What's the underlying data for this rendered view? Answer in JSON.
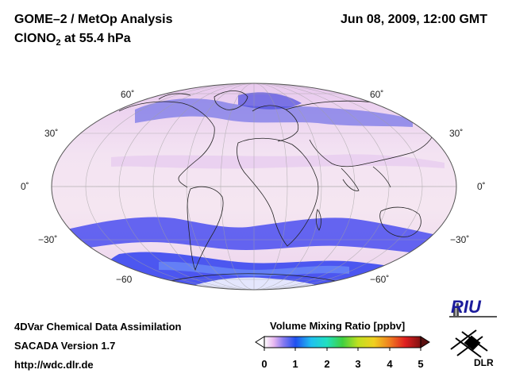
{
  "header": {
    "title_line1": "GOME–2 / MetOp Analysis",
    "title_species_main": "ClONO",
    "title_species_sub": "2",
    "title_species_rest": " at 55.4 hPa",
    "date": "Jun 08, 2009, 12:00 GMT"
  },
  "map": {
    "projection": "Mollweide",
    "lat_labels_left": [
      "60˚",
      "30˚",
      "0˚",
      "−30˚",
      "−60"
    ],
    "lat_labels_right": [
      "60˚",
      "30˚",
      "0˚",
      "−30˚",
      "−60˚"
    ]
  },
  "colorbar": {
    "title": "Volume Mixing Ratio [ppbv]",
    "ticks": [
      "0",
      "1",
      "2",
      "3",
      "4",
      "5"
    ],
    "range": [
      0,
      5
    ]
  },
  "footer": {
    "line1": "4DVar Chemical Data Assimilation",
    "line2": "SACADA Version 1.7",
    "line3": "http://wdc.dlr.de"
  },
  "logos": {
    "riu": "RIU",
    "dlr": "DLR"
  }
}
